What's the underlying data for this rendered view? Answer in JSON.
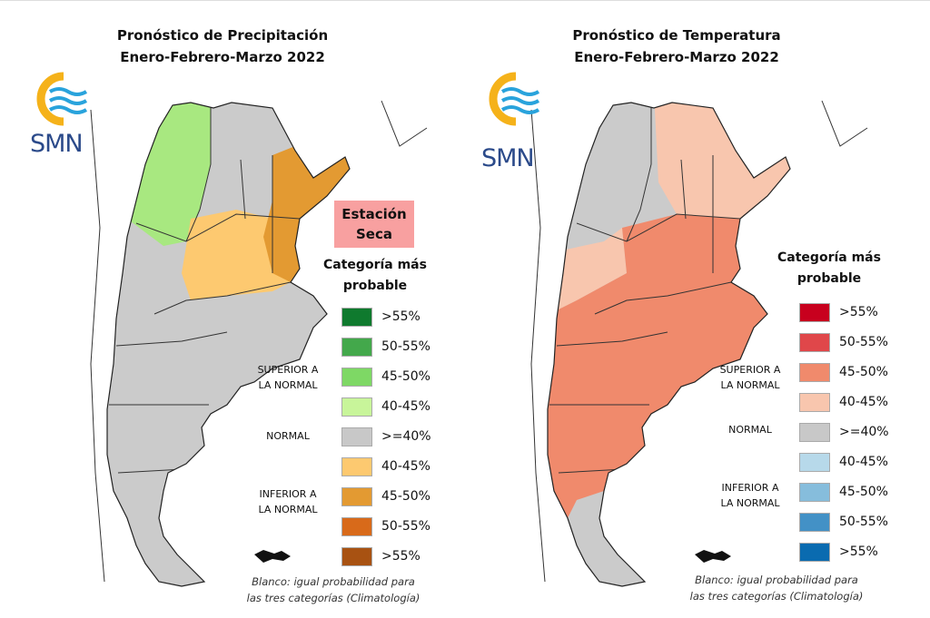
{
  "precipitation": {
    "title_line1": "Pronóstico de Precipitación",
    "title_line2": "Enero-Febrero-Marzo 2022",
    "logo_text": "SMN",
    "badge": "Estación Seca",
    "legend_title_line1": "Categoría más",
    "legend_title_line2": "probable",
    "groups": {
      "superior": [
        "SUPERIOR A",
        "LA NORMAL"
      ],
      "normal": "NORMAL",
      "inferior": [
        "INFERIOR A",
        "LA NORMAL"
      ]
    },
    "legend": [
      {
        "label": ">55%",
        "color": "#0f7a2e"
      },
      {
        "label": "50-55%",
        "color": "#43a84b"
      },
      {
        "label": "45-50%",
        "color": "#7ed865"
      },
      {
        "label": "40-45%",
        "color": "#c8f59a"
      },
      {
        "label": ">=40%",
        "color": "#c8c8c8"
      },
      {
        "label": "40-45%",
        "color": "#fdc970"
      },
      {
        "label": "45-50%",
        "color": "#e39a32"
      },
      {
        "label": "50-55%",
        "color": "#d86a1a"
      },
      {
        "label": ">55%",
        "color": "#a85212"
      }
    ],
    "footnote_line1": "Blanco: igual probabilidad para",
    "footnote_line2": "las tres categorías (Climatología)"
  },
  "temperature": {
    "title_line1": "Pronóstico de Temperatura",
    "title_line2": "Enero-Febrero-Marzo 2022",
    "logo_text": "SMN",
    "legend_title_line1": "Categoría más",
    "legend_title_line2": "probable",
    "groups": {
      "superior": [
        "SUPERIOR A",
        "LA NORMAL"
      ],
      "normal": "NORMAL",
      "inferior": [
        "INFERIOR A",
        "LA NORMAL"
      ]
    },
    "legend": [
      {
        "label": ">55%",
        "color": "#c8001e"
      },
      {
        "label": "50-55%",
        "color": "#e0474a"
      },
      {
        "label": "45-50%",
        "color": "#f08a6c"
      },
      {
        "label": "40-45%",
        "color": "#f8c6ae"
      },
      {
        "label": ">=40%",
        "color": "#c8c8c8"
      },
      {
        "label": "40-45%",
        "color": "#b7d9ea"
      },
      {
        "label": "45-50%",
        "color": "#86bddc"
      },
      {
        "label": "50-55%",
        "color": "#4391c6"
      },
      {
        "label": ">55%",
        "color": "#0a6bb0"
      }
    ],
    "footnote_line1": "Blanco: igual probabilidad para",
    "footnote_line2": "las tres categorías (Climatología)"
  }
}
